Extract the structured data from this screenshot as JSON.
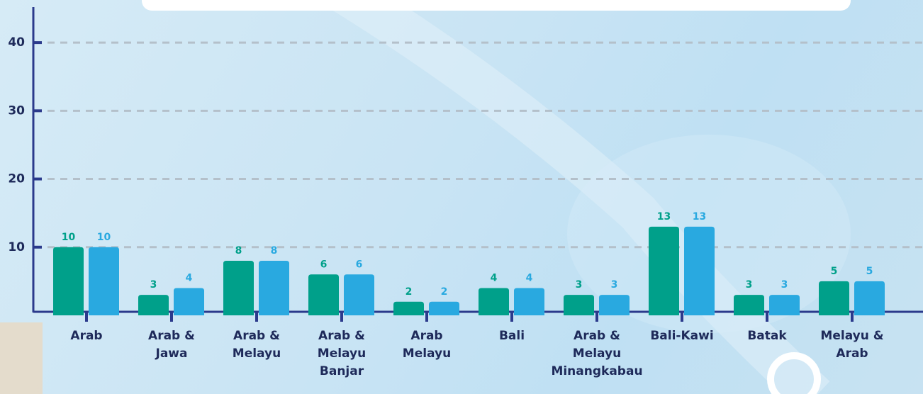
{
  "chart_data": {
    "type": "bar",
    "categories": [
      "Arab",
      "Arab &\nJawa",
      "Arab &\nMelayu",
      "Arab &\nMelayu\nBanjar",
      "Arab\nMelayu",
      "Bali",
      "Arab &\nMelayu\nMinangkabau",
      "Bali-Kawi",
      "Batak",
      "Melayu &\nArab"
    ],
    "series": [
      {
        "color": "#00a08a",
        "values": [
          10,
          3,
          8,
          6,
          2,
          4,
          3,
          13,
          3,
          5
        ]
      },
      {
        "color": "#29a9e0",
        "values": [
          10,
          4,
          8,
          6,
          2,
          4,
          3,
          13,
          3,
          5
        ]
      }
    ],
    "ylim": [
      0,
      45
    ],
    "yticks": [
      10,
      20,
      30,
      40
    ],
    "grid": true
  }
}
